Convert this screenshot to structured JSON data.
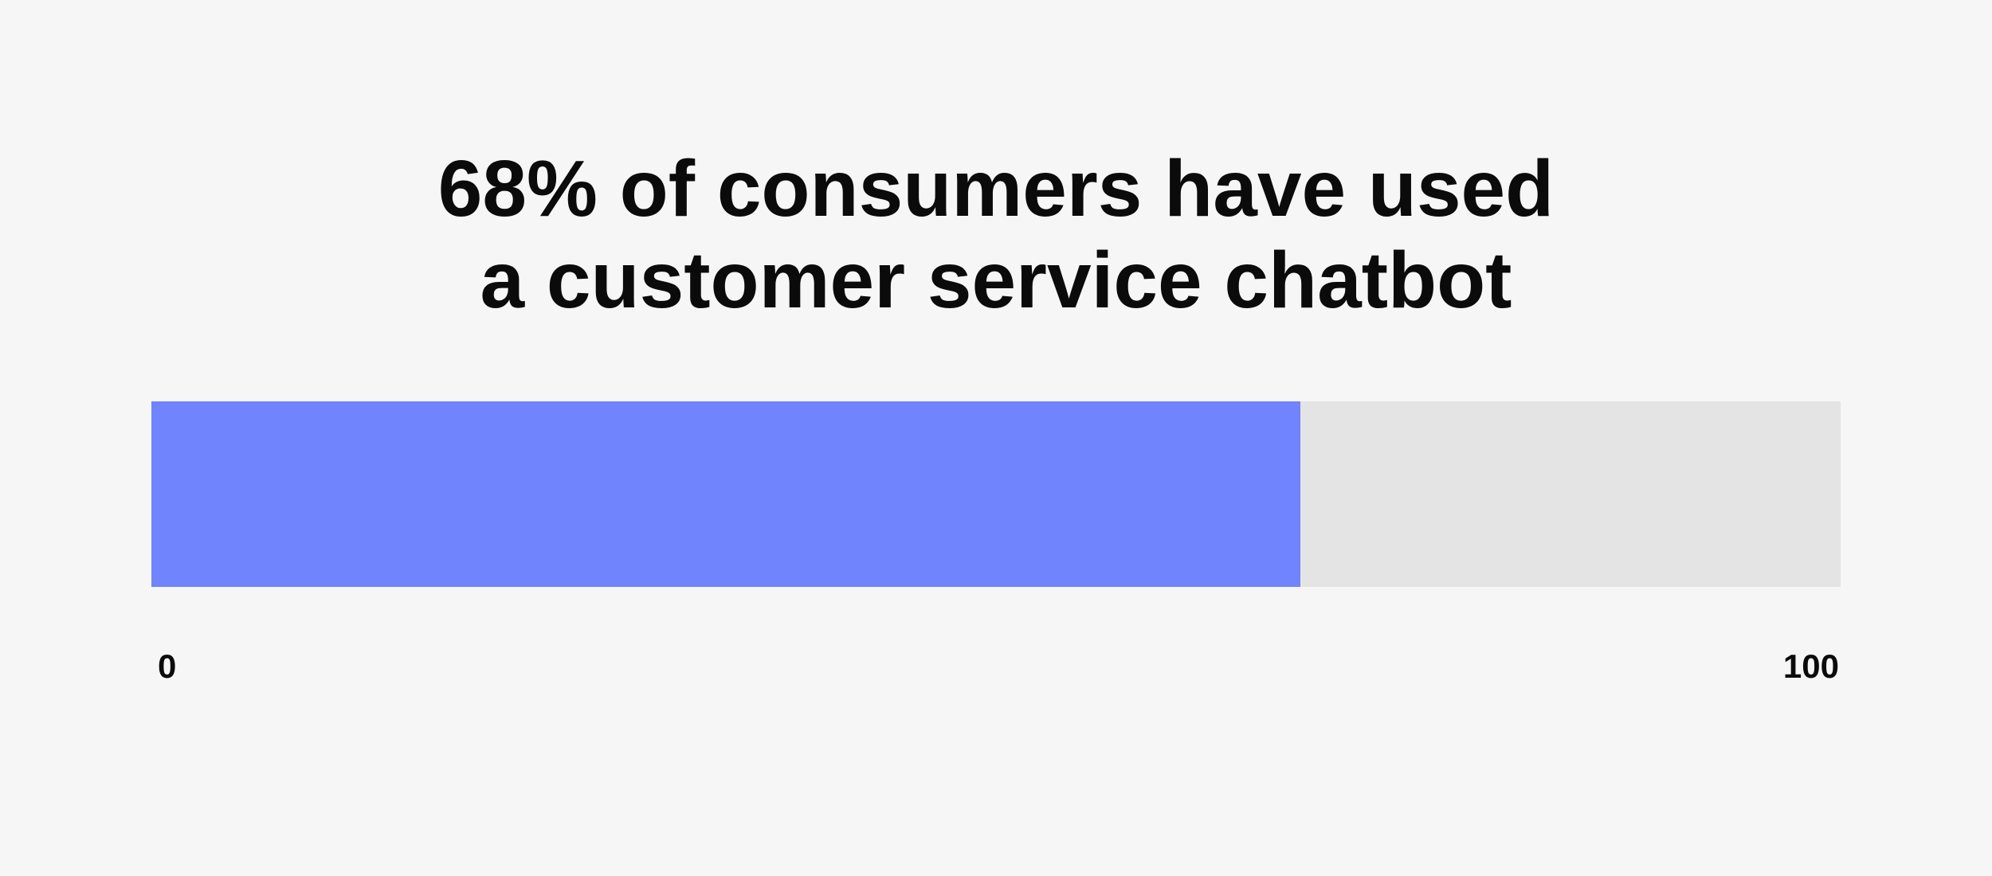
{
  "title": {
    "line1": "68% of consumers have used",
    "line2": "a customer service chatbot"
  },
  "chart_data": {
    "type": "bar",
    "orientation": "horizontal",
    "title": "68% of consumers have used a customer service chatbot",
    "values": [
      68
    ],
    "xlim": [
      0,
      100
    ],
    "tick_labels": [
      "0",
      "100"
    ],
    "grid": false,
    "colors": {
      "fill": "#7084fd",
      "track": "#e4e4e4"
    }
  }
}
